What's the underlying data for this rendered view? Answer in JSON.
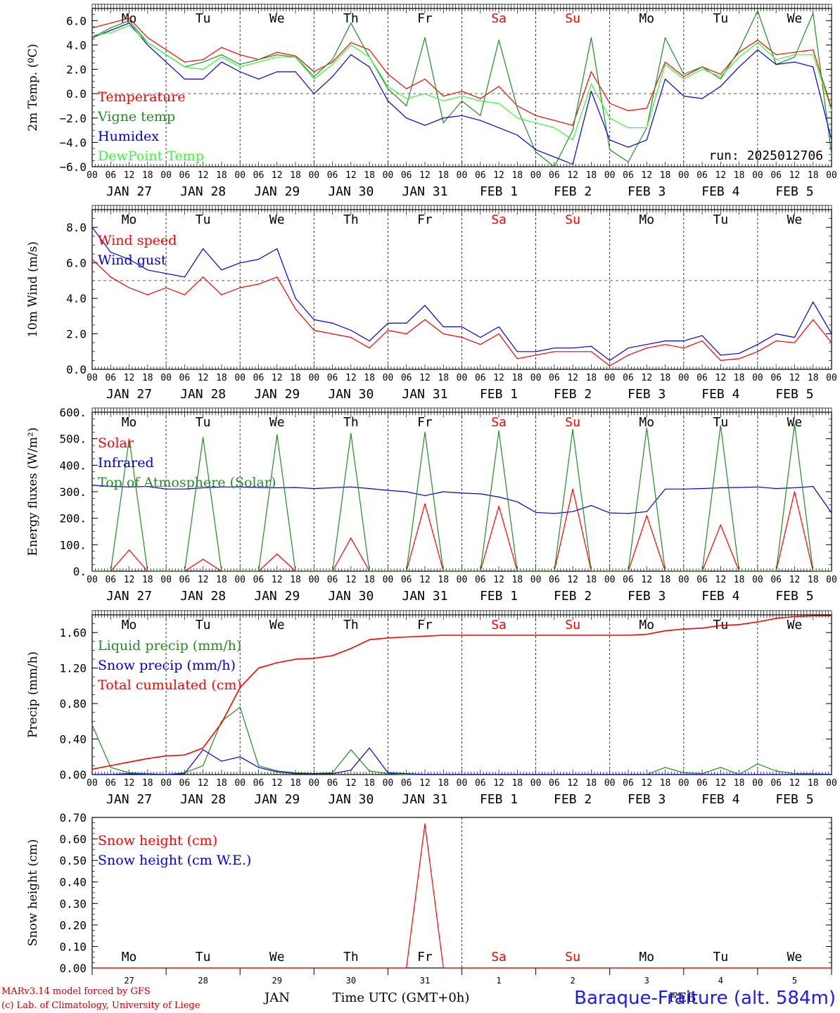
{
  "station": "Baraque-Fraiture (alt. 584m)",
  "run_label": "run: 2025012706",
  "credits": [
    "MARv3.14 model forced by GFS",
    "(c) Lab. of Climatology, University of Liege"
  ],
  "footer": {
    "month_left": "JAN",
    "axis_title": "Time UTC (GMT+0h)",
    "month_right": "FEB"
  },
  "hour_ticks": [
    "00",
    "06",
    "12",
    "18"
  ],
  "date_labels": [
    "JAN 27",
    "JAN 28",
    "JAN 29",
    "JAN 30",
    "JAN 31",
    "FEB  1",
    "FEB  2",
    "FEB  3",
    "FEB  4",
    "FEB  5"
  ],
  "day_names": [
    "Mo",
    "Tu",
    "We",
    "Th",
    "Fr",
    "Sa",
    "Su",
    "Mo",
    "Tu",
    "We"
  ],
  "day_name_colors": [
    "#000000",
    "#000000",
    "#000000",
    "#000000",
    "#000000",
    "#ff0000",
    "#ff0000",
    "#000000",
    "#000000",
    "#000000"
  ],
  "day_numbers": [
    "27",
    "28",
    "29",
    "30",
    "31",
    "1",
    "2",
    "3",
    "4",
    "5"
  ],
  "colors": {
    "red": "#ff0000",
    "green": "#228B22",
    "blue": "#0000dd",
    "lightgreen": "#33ff33"
  },
  "chart_data": [
    {
      "type": "line",
      "ylabel": "2m Temp. (ºC)",
      "ylim": [
        -6,
        7
      ],
      "yticks": [
        "6.0",
        "4.0",
        "2.0",
        "0.0",
        "−2.0",
        "−4.0",
        "−6.0"
      ],
      "reference_line": 0,
      "x_hours": [
        0,
        6,
        12,
        18,
        24,
        30,
        36,
        42,
        48,
        54,
        60,
        66,
        72,
        78,
        84,
        90,
        96,
        102,
        108,
        114,
        120,
        126,
        132,
        138,
        144,
        150,
        156,
        162,
        168,
        174,
        180,
        186,
        192,
        198,
        204,
        210,
        216,
        222,
        228,
        234,
        240
      ],
      "series": [
        {
          "name": "Temperature",
          "color": "red",
          "values": [
            5.4,
            5.8,
            6.2,
            4.6,
            3.6,
            2.6,
            2.8,
            3.8,
            3.2,
            2.8,
            3.4,
            3.1,
            1.8,
            2.6,
            4.2,
            3.6,
            1.6,
            0.4,
            1.2,
            -0.2,
            0.2,
            -0.4,
            0.6,
            -1.0,
            -1.8,
            -2.2,
            -2.6,
            1.8,
            -0.8,
            -1.4,
            -1.2,
            2.6,
            1.4,
            2.2,
            1.6,
            3.4,
            4.4,
            3.2,
            3.4,
            3.6,
            -1.2
          ]
        },
        {
          "name": "Vigne temp",
          "color": "green",
          "values": [
            4.6,
            5.4,
            6.0,
            4.2,
            3.2,
            2.2,
            2.6,
            3.2,
            2.4,
            2.8,
            3.2,
            3.0,
            1.4,
            2.8,
            5.8,
            3.0,
            0.4,
            -1.0,
            4.6,
            -2.4,
            -0.6,
            -1.8,
            4.4,
            -1.2,
            -4.8,
            -6.0,
            -3.0,
            4.6,
            -4.6,
            -5.6,
            -2.8,
            4.6,
            1.6,
            2.2,
            1.2,
            3.6,
            6.8,
            2.4,
            3.0,
            6.6,
            -5.0
          ]
        },
        {
          "name": "Humidex",
          "color": "blue",
          "values": [
            4.6,
            5.2,
            5.8,
            4.0,
            2.6,
            1.2,
            1.2,
            2.6,
            1.8,
            1.2,
            1.8,
            1.8,
            0.0,
            1.4,
            3.2,
            2.2,
            -0.6,
            -2.0,
            -2.6,
            -2.0,
            -1.8,
            -2.2,
            -2.8,
            -3.4,
            -4.6,
            -5.2,
            -5.8,
            0.2,
            -3.8,
            -4.4,
            -3.8,
            1.2,
            -0.2,
            -0.4,
            0.6,
            2.2,
            3.6,
            2.4,
            2.6,
            2.2,
            -3.8
          ]
        },
        {
          "name": "DewPoint Temp",
          "color": "lightgreen",
          "values": [
            4.8,
            5.0,
            5.6,
            4.2,
            3.2,
            2.2,
            2.0,
            3.0,
            2.2,
            2.6,
            3.0,
            3.0,
            1.2,
            2.4,
            4.0,
            3.0,
            0.6,
            -0.4,
            0.0,
            -0.6,
            -0.2,
            -0.6,
            -0.8,
            -2.0,
            -2.4,
            -2.8,
            -3.8,
            0.8,
            -2.0,
            -2.8,
            -2.8,
            2.4,
            1.2,
            2.0,
            1.4,
            3.0,
            4.2,
            2.8,
            3.2,
            3.2,
            -1.4
          ]
        }
      ]
    },
    {
      "type": "line",
      "ylabel": "10m Wind (m/s)",
      "ylim": [
        0,
        9
      ],
      "yticks": [
        "8.0",
        "6.0",
        "4.0",
        "2.0",
        "0.0"
      ],
      "reference_line": 5,
      "x_hours": [
        0,
        6,
        12,
        18,
        24,
        30,
        36,
        42,
        48,
        54,
        60,
        66,
        72,
        78,
        84,
        90,
        96,
        102,
        108,
        114,
        120,
        126,
        132,
        138,
        144,
        150,
        156,
        162,
        168,
        174,
        180,
        186,
        192,
        198,
        204,
        210,
        216,
        222,
        228,
        234,
        240
      ],
      "series": [
        {
          "name": "Wind speed",
          "color": "red",
          "values": [
            6.2,
            5.2,
            4.6,
            4.2,
            4.6,
            4.2,
            5.2,
            4.2,
            4.6,
            4.8,
            5.2,
            3.4,
            2.2,
            2.0,
            1.8,
            1.2,
            2.2,
            2.0,
            2.8,
            2.0,
            1.8,
            1.4,
            2.0,
            0.6,
            0.8,
            1.0,
            1.0,
            1.0,
            0.2,
            0.8,
            1.2,
            1.4,
            1.2,
            1.6,
            0.5,
            0.6,
            1.0,
            1.6,
            1.5,
            2.8,
            1.5
          ]
        },
        {
          "name": "Wind gust",
          "color": "blue",
          "values": [
            8.0,
            6.6,
            6.2,
            5.6,
            5.4,
            5.2,
            6.8,
            5.6,
            6.0,
            6.2,
            6.8,
            4.0,
            2.8,
            2.6,
            2.2,
            1.6,
            2.6,
            2.6,
            3.6,
            2.4,
            2.4,
            1.8,
            2.4,
            1.0,
            1.0,
            1.2,
            1.2,
            1.3,
            0.5,
            1.2,
            1.4,
            1.6,
            1.6,
            1.9,
            0.8,
            0.9,
            1.4,
            2.0,
            1.8,
            3.8,
            2.0
          ]
        }
      ]
    },
    {
      "type": "line",
      "ylabel": "Energy fluxes (W/m²)",
      "ylim": [
        0,
        600
      ],
      "yticks": [
        "600.",
        "500.",
        "400.",
        "300.",
        "200.",
        "100.",
        "0."
      ],
      "x_hours": [
        0,
        6,
        12,
        18,
        24,
        30,
        36,
        42,
        48,
        54,
        60,
        66,
        72,
        78,
        84,
        90,
        96,
        102,
        108,
        114,
        120,
        126,
        132,
        138,
        144,
        150,
        156,
        162,
        168,
        174,
        180,
        186,
        192,
        198,
        204,
        210,
        216,
        222,
        228,
        234,
        240
      ],
      "series": [
        {
          "name": "Solar",
          "color": "red",
          "values": [
            0,
            0,
            80,
            0,
            0,
            0,
            45,
            0,
            0,
            0,
            65,
            0,
            0,
            0,
            125,
            0,
            0,
            0,
            255,
            0,
            0,
            0,
            245,
            0,
            0,
            0,
            310,
            0,
            0,
            0,
            210,
            0,
            0,
            0,
            175,
            0,
            0,
            0,
            300,
            0,
            0
          ]
        },
        {
          "name": "Infrared",
          "color": "blue",
          "values": [
            325,
            320,
            318,
            320,
            310,
            310,
            315,
            318,
            318,
            316,
            315,
            316,
            312,
            315,
            318,
            312,
            305,
            300,
            285,
            300,
            295,
            292,
            280,
            262,
            222,
            218,
            225,
            248,
            220,
            218,
            225,
            310,
            310,
            312,
            315,
            316,
            318,
            312,
            315,
            320,
            220
          ]
        },
        {
          "name": "Top of Atmosphere (Solar)",
          "color": "green",
          "values": [
            0,
            0,
            500,
            0,
            0,
            0,
            505,
            0,
            0,
            0,
            515,
            0,
            0,
            0,
            520,
            0,
            0,
            0,
            525,
            0,
            0,
            0,
            530,
            0,
            0,
            0,
            535,
            0,
            0,
            0,
            540,
            0,
            0,
            0,
            550,
            0,
            0,
            0,
            555,
            0,
            0
          ]
        }
      ]
    },
    {
      "type": "line",
      "ylabel": "Precip (mm/h)",
      "ylim": [
        0,
        1.8
      ],
      "yticks": [
        "1.60",
        "1.20",
        "0.80",
        "0.40",
        "0.00"
      ],
      "x_hours": [
        0,
        6,
        12,
        18,
        24,
        30,
        36,
        42,
        48,
        54,
        60,
        66,
        72,
        78,
        84,
        90,
        96,
        102,
        108,
        114,
        120,
        126,
        132,
        138,
        144,
        150,
        156,
        162,
        168,
        174,
        180,
        186,
        192,
        198,
        204,
        210,
        216,
        222,
        228,
        234,
        240
      ],
      "series": [
        {
          "name": "Liquid precip (mm/h)",
          "color": "green",
          "values": [
            0.56,
            0.08,
            0.02,
            0.01,
            0.0,
            0.02,
            0.1,
            0.6,
            0.76,
            0.1,
            0.04,
            0.02,
            0.01,
            0.02,
            0.28,
            0.04,
            0.01,
            0.0,
            0.0,
            0.0,
            0.0,
            0.0,
            0.0,
            0.0,
            0.0,
            0.0,
            0.0,
            0.0,
            0.0,
            0.0,
            0.0,
            0.08,
            0.02,
            0.01,
            0.08,
            0.0,
            0.12,
            0.04,
            0.01,
            0.01,
            0.0
          ]
        },
        {
          "name": "Snow precip (mm/h)",
          "color": "blue",
          "values": [
            0.0,
            0.0,
            0.01,
            0.0,
            0.0,
            0.01,
            0.28,
            0.15,
            0.2,
            0.08,
            0.03,
            0.01,
            0.01,
            0.01,
            0.05,
            0.3,
            0.02,
            0.01,
            0.0,
            0.0,
            0.0,
            0.0,
            0.0,
            0.0,
            0.0,
            0.0,
            0.0,
            0.0,
            0.0,
            0.0,
            0.0,
            0.0,
            0.0,
            0.0,
            0.0,
            0.0,
            0.0,
            0.0,
            0.0,
            0.0,
            0.0
          ]
        },
        {
          "name": "Total cumulated (cm)",
          "color": "red",
          "values": [
            0.06,
            0.1,
            0.14,
            0.18,
            0.21,
            0.22,
            0.3,
            0.58,
            0.98,
            1.2,
            1.26,
            1.3,
            1.31,
            1.34,
            1.42,
            1.52,
            1.54,
            1.55,
            1.56,
            1.57,
            1.57,
            1.57,
            1.57,
            1.57,
            1.57,
            1.57,
            1.57,
            1.57,
            1.57,
            1.57,
            1.58,
            1.62,
            1.64,
            1.65,
            1.68,
            1.69,
            1.72,
            1.76,
            1.78,
            1.79,
            1.79
          ]
        }
      ]
    },
    {
      "type": "line",
      "ylabel": "Snow height (cm)",
      "ylim": [
        0,
        0.7
      ],
      "yticks": [
        "0.70",
        "0.60",
        "0.50",
        "0.40",
        "0.30",
        "0.20",
        "0.10",
        "0.00"
      ],
      "x_hours": [
        0,
        6,
        12,
        18,
        24,
        30,
        36,
        42,
        48,
        54,
        60,
        66,
        72,
        78,
        84,
        90,
        96,
        102,
        108,
        114,
        120,
        126,
        132,
        138,
        144,
        150,
        156,
        162,
        168,
        174,
        180,
        186,
        192,
        198,
        204,
        210,
        216,
        222,
        228,
        234,
        240
      ],
      "series": [
        {
          "name": "Snow height (cm)",
          "color": "red",
          "values": [
            0,
            0,
            0,
            0,
            0,
            0,
            0,
            0,
            0,
            0,
            0,
            0,
            0,
            0,
            0,
            0,
            0,
            0,
            0.67,
            0,
            0,
            0,
            0,
            0,
            0,
            0,
            0,
            0,
            0,
            0,
            0,
            0,
            0,
            0,
            0,
            0,
            0,
            0,
            0,
            0,
            0
          ]
        },
        {
          "name": "Snow height (cm W.E.)",
          "color": "blue",
          "values": []
        }
      ]
    }
  ]
}
